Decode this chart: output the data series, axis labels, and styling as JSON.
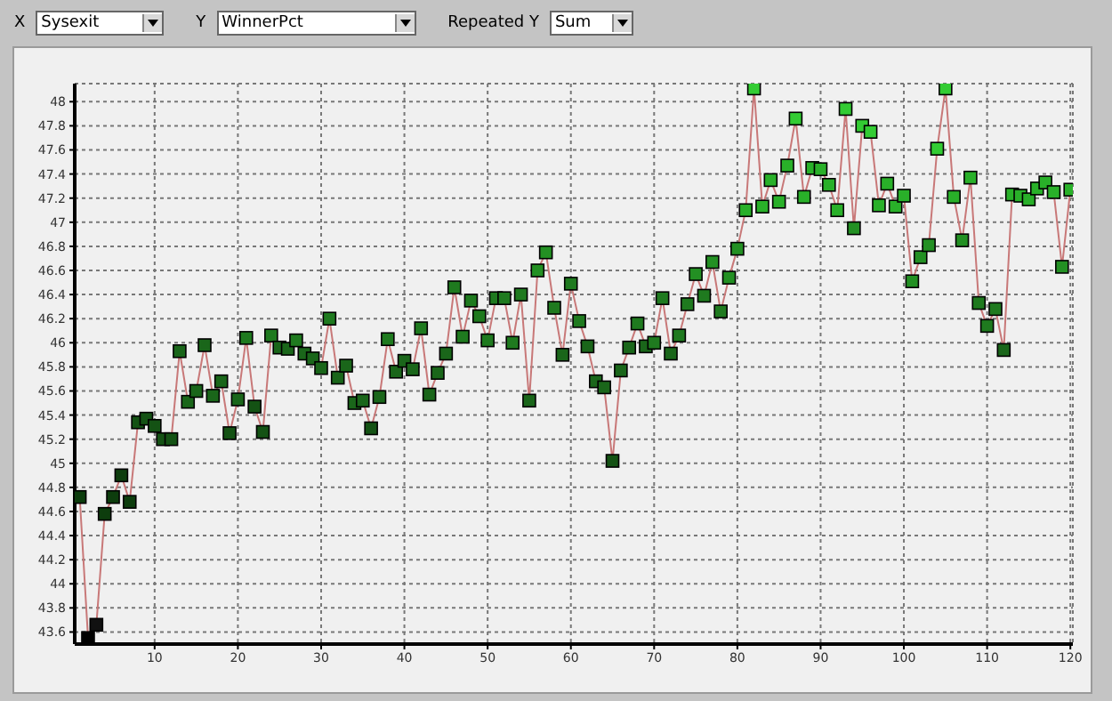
{
  "chart_data": {
    "type": "line",
    "annotations": [
      "X",
      "Sysexit",
      "Y",
      "WinnerPct",
      "Repeated Y",
      "Sum"
    ],
    "x": [
      1,
      2,
      3,
      4,
      5,
      6,
      7,
      8,
      9,
      10,
      11,
      12,
      13,
      14,
      15,
      16,
      17,
      18,
      19,
      20,
      21,
      22,
      23,
      24,
      25,
      26,
      27,
      28,
      29,
      30,
      31,
      32,
      33,
      34,
      35,
      36,
      37,
      38,
      39,
      40,
      41,
      42,
      43,
      44,
      45,
      46,
      47,
      48,
      49,
      50,
      51,
      52,
      53,
      54,
      55,
      56,
      57,
      58,
      59,
      60,
      61,
      62,
      63,
      64,
      65,
      66,
      67,
      68,
      69,
      70,
      71,
      72,
      73,
      74,
      75,
      76,
      77,
      78,
      79,
      80,
      81,
      82,
      83,
      84,
      85,
      86,
      87,
      88,
      89,
      90,
      91,
      92,
      93,
      94,
      95,
      96,
      97,
      98,
      99,
      100,
      101,
      102,
      103,
      104,
      105,
      106,
      107,
      108,
      109,
      110,
      111,
      112,
      113,
      114,
      115,
      116,
      117,
      118,
      119,
      120
    ],
    "series": [
      {
        "color": "#c87878",
        "values": [
          44.72,
          43.55,
          43.66,
          44.58,
          44.72,
          44.9,
          44.68,
          45.34,
          45.37,
          45.31,
          45.2,
          45.2,
          45.93,
          45.51,
          45.6,
          45.98,
          45.56,
          45.68,
          45.25,
          45.53,
          46.04,
          45.47,
          45.26,
          46.06,
          45.96,
          45.95,
          46.02,
          45.91,
          45.87,
          45.79,
          46.2,
          45.71,
          45.81,
          45.5,
          45.52,
          45.29,
          45.55,
          46.03,
          45.76,
          45.85,
          45.78,
          46.12,
          45.57,
          45.75,
          45.91,
          46.46,
          46.05,
          46.35,
          46.22,
          46.02,
          46.37,
          46.37,
          46.0,
          46.4,
          45.52,
          46.6,
          46.75,
          46.29,
          45.9,
          46.49,
          46.18,
          45.97,
          45.68,
          45.63,
          45.02,
          45.77,
          45.96,
          46.16,
          45.97,
          46.0,
          46.37,
          45.91,
          46.06,
          46.32,
          46.57,
          46.39,
          46.67,
          46.26,
          46.54,
          46.78,
          47.1,
          48.11,
          47.13,
          47.35,
          47.17,
          47.47,
          47.86,
          47.21,
          47.45,
          47.44,
          47.31,
          47.1,
          47.94,
          46.95,
          47.8,
          47.75,
          47.14,
          47.32,
          47.13,
          47.22,
          46.51,
          46.71,
          46.81,
          47.61,
          48.11,
          47.21,
          46.85,
          47.37,
          46.33,
          46.14,
          46.28,
          45.94,
          47.23,
          47.22,
          47.19,
          47.28,
          47.33,
          47.25,
          46.63,
          47.27
        ],
        "colors": [
          "#0d3d0d",
          "#000000",
          "#111111",
          "#0d3d0d",
          "#0d3d0d",
          "#0d3d0d",
          "#0d3d0d",
          "#145214",
          "#145214",
          "#145214",
          "#145214",
          "#145214",
          "#1a661a",
          "#1a661a",
          "#1a661a",
          "#1a661a",
          "#1a661a",
          "#1a661a",
          "#145214",
          "#1a661a",
          "#1f7a1f",
          "#145214",
          "#145214",
          "#1f7a1f",
          "#1a661a",
          "#1a661a",
          "#1f7a1f",
          "#1a661a",
          "#1a661a",
          "#1a661a",
          "#1f7a1f",
          "#1a661a",
          "#1a661a",
          "#1a661a",
          "#1a661a",
          "#145214",
          "#1a661a",
          "#1f7a1f",
          "#1a661a",
          "#1a661a",
          "#1a661a",
          "#1f7a1f",
          "#1a661a",
          "#1a661a",
          "#1a661a",
          "#1f7a1f",
          "#1f7a1f",
          "#1f7a1f",
          "#1f7a1f",
          "#1f7a1f",
          "#1f7a1f",
          "#1f7a1f",
          "#1f7a1f",
          "#1f7a1f",
          "#1a661a",
          "#239023",
          "#239023",
          "#1f7a1f",
          "#1a661a",
          "#1f7a1f",
          "#1f7a1f",
          "#1a661a",
          "#1a661a",
          "#1a661a",
          "#145214",
          "#1a661a",
          "#1a661a",
          "#1f7a1f",
          "#1a661a",
          "#1f7a1f",
          "#1f7a1f",
          "#1a661a",
          "#1f7a1f",
          "#1f7a1f",
          "#239023",
          "#1f7a1f",
          "#239023",
          "#1f7a1f",
          "#239023",
          "#239023",
          "#29b029",
          "#33cc33",
          "#29b029",
          "#29b029",
          "#29b029",
          "#29b029",
          "#33cc33",
          "#29b029",
          "#29b029",
          "#29b029",
          "#29b029",
          "#29b029",
          "#33cc33",
          "#239023",
          "#33cc33",
          "#33cc33",
          "#29b029",
          "#29b029",
          "#29b029",
          "#29b029",
          "#239023",
          "#239023",
          "#239023",
          "#33cc33",
          "#33cc33",
          "#29b029",
          "#239023",
          "#29b029",
          "#1f7a1f",
          "#1f7a1f",
          "#1f7a1f",
          "#1a661a",
          "#29b029",
          "#29b029",
          "#29b029",
          "#29b029",
          "#29b029",
          "#29b029",
          "#239023",
          "#29b029"
        ]
      }
    ],
    "xlim": [
      0.4,
      120.3
    ],
    "xticks": [
      10,
      20,
      30,
      40,
      50,
      60,
      70,
      80,
      90,
      100,
      110,
      120
    ],
    "ylim": [
      43.5,
      48.15
    ],
    "yticks": [
      43.6,
      43.8,
      44,
      44.2,
      44.4,
      44.6,
      44.8,
      45,
      45.2,
      45.4,
      45.6,
      45.8,
      46,
      46.2,
      46.4,
      46.6,
      46.8,
      47,
      47.2,
      47.4,
      47.6,
      47.8,
      48
    ],
    "grid": true,
    "marker": "square",
    "line_style": "solid",
    "legend": false
  }
}
